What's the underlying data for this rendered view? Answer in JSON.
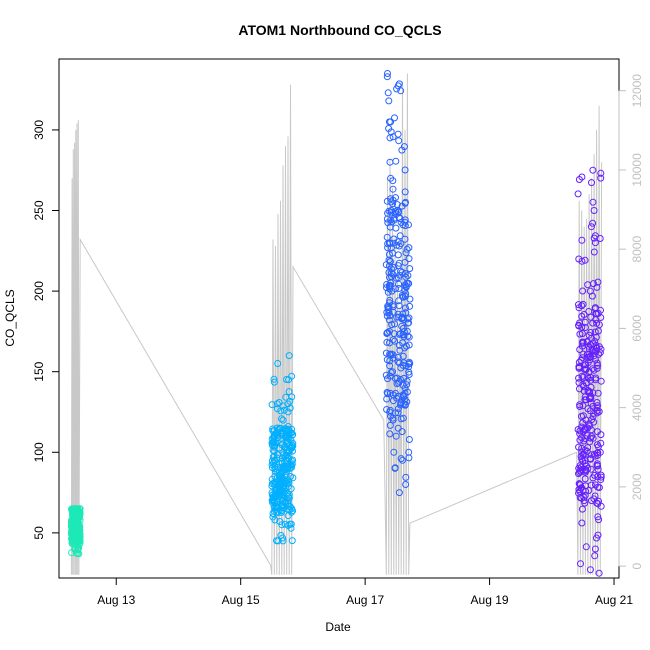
{
  "chart_data": {
    "type": "scatter",
    "title": "ATOM1 Northbound CO_QCLS",
    "xlabel": "Date",
    "ylabel": "CO_QCLS",
    "x_range_days": [
      12.08,
      21.08
    ],
    "ylim": [
      22,
      344
    ],
    "y2lim": [
      -300,
      12800
    ],
    "x_ticks": [
      {
        "day": 13,
        "label": "Aug 13"
      },
      {
        "day": 15,
        "label": "Aug 15"
      },
      {
        "day": 17,
        "label": "Aug 17"
      },
      {
        "day": 19,
        "label": "Aug 19"
      },
      {
        "day": 21,
        "label": "Aug 21"
      }
    ],
    "y_ticks": [
      50,
      100,
      150,
      200,
      250,
      300
    ],
    "y2_ticks": [
      0,
      2000,
      4000,
      6000,
      8000,
      10000,
      12000
    ],
    "grid": false,
    "series": [
      {
        "color": "#1de9b6",
        "day_range": [
          12.28,
          12.42
        ],
        "points": [
          [
            12.3,
            45
          ],
          [
            12.32,
            52
          ],
          [
            12.33,
            60
          ],
          [
            12.34,
            58
          ],
          [
            12.35,
            63
          ],
          [
            12.36,
            55
          ],
          [
            12.37,
            62
          ],
          [
            12.38,
            65
          ],
          [
            12.39,
            59
          ],
          [
            12.4,
            37
          ],
          [
            12.41,
            61
          ],
          [
            12.36,
            48
          ],
          [
            12.33,
            65
          ],
          [
            12.38,
            40
          ]
        ]
      },
      {
        "color": "#00b0ff",
        "day_range": [
          15.5,
          15.84
        ],
        "points": [
          [
            15.52,
            62
          ],
          [
            15.55,
            58
          ],
          [
            15.58,
            70
          ],
          [
            15.6,
            45
          ],
          [
            15.62,
            80
          ],
          [
            15.64,
            90
          ],
          [
            15.66,
            55
          ],
          [
            15.68,
            100
          ],
          [
            15.7,
            75
          ],
          [
            15.72,
            110
          ],
          [
            15.74,
            95
          ],
          [
            15.76,
            130
          ],
          [
            15.78,
            160
          ],
          [
            15.8,
            85
          ],
          [
            15.82,
            65
          ],
          [
            15.77,
            145
          ]
        ]
      },
      {
        "color": "#2962ff",
        "day_range": [
          17.34,
          17.72
        ],
        "points": [
          [
            17.36,
            335
          ],
          [
            17.37,
            323
          ],
          [
            17.38,
            318
          ],
          [
            17.39,
            305
          ],
          [
            17.4,
            280
          ],
          [
            17.41,
            270
          ],
          [
            17.42,
            250
          ],
          [
            17.43,
            200
          ],
          [
            17.44,
            150
          ],
          [
            17.45,
            120
          ],
          [
            17.46,
            100
          ],
          [
            17.48,
            90
          ],
          [
            17.5,
            110
          ],
          [
            17.55,
            75
          ],
          [
            17.6,
            95
          ],
          [
            17.65,
            80
          ],
          [
            17.7,
            100
          ],
          [
            17.38,
            190
          ]
        ]
      },
      {
        "color": "#651fff",
        "day_range": [
          20.42,
          20.8
        ],
        "points": [
          [
            20.45,
            80
          ],
          [
            20.48,
            100
          ],
          [
            20.52,
            70
          ],
          [
            20.55,
            120
          ],
          [
            20.58,
            90
          ],
          [
            20.6,
            150
          ],
          [
            20.62,
            200
          ],
          [
            20.64,
            110
          ],
          [
            20.66,
            275
          ],
          [
            20.68,
            250
          ],
          [
            20.7,
            230
          ],
          [
            20.72,
            180
          ],
          [
            20.74,
            60
          ],
          [
            20.76,
            25
          ],
          [
            20.78,
            100
          ],
          [
            20.7,
            40
          ]
        ]
      }
    ],
    "secondary_series": {
      "color": "#c8c8c8",
      "type": "line",
      "points": [
        [
          12.28,
          24
        ],
        [
          12.29,
          270
        ],
        [
          12.3,
          24
        ],
        [
          12.31,
          288
        ],
        [
          12.32,
          24
        ],
        [
          12.33,
          292
        ],
        [
          12.34,
          24
        ],
        [
          12.35,
          300
        ],
        [
          12.36,
          24
        ],
        [
          12.37,
          304
        ],
        [
          12.38,
          24
        ],
        [
          12.39,
          306
        ],
        [
          12.4,
          24
        ],
        [
          12.42,
          232
        ],
        [
          15.48,
          30
        ],
        [
          15.5,
          24
        ],
        [
          15.52,
          232
        ],
        [
          15.54,
          24
        ],
        [
          15.56,
          228
        ],
        [
          15.58,
          24
        ],
        [
          15.6,
          248
        ],
        [
          15.62,
          24
        ],
        [
          15.64,
          256
        ],
        [
          15.66,
          24
        ],
        [
          15.68,
          278
        ],
        [
          15.7,
          24
        ],
        [
          15.72,
          290
        ],
        [
          15.74,
          24
        ],
        [
          15.76,
          296
        ],
        [
          15.78,
          24
        ],
        [
          15.8,
          328
        ],
        [
          15.82,
          24
        ],
        [
          15.84,
          215
        ],
        [
          17.3,
          120
        ],
        [
          17.34,
          24
        ],
        [
          17.36,
          270
        ],
        [
          17.38,
          24
        ],
        [
          17.4,
          282
        ],
        [
          17.42,
          24
        ],
        [
          17.44,
          264
        ],
        [
          17.46,
          24
        ],
        [
          17.48,
          234
        ],
        [
          17.5,
          24
        ],
        [
          17.52,
          216
        ],
        [
          17.54,
          24
        ],
        [
          17.56,
          190
        ],
        [
          17.58,
          24
        ],
        [
          17.6,
          330
        ],
        [
          17.62,
          24
        ],
        [
          17.64,
          300
        ],
        [
          17.66,
          24
        ],
        [
          17.68,
          335
        ],
        [
          17.7,
          24
        ],
        [
          17.72,
          56
        ],
        [
          20.4,
          100
        ],
        [
          20.42,
          24
        ],
        [
          20.44,
          256
        ],
        [
          20.46,
          24
        ],
        [
          20.48,
          250
        ],
        [
          20.5,
          24
        ],
        [
          20.52,
          240
        ],
        [
          20.54,
          24
        ],
        [
          20.56,
          245
        ],
        [
          20.58,
          24
        ],
        [
          20.6,
          260
        ],
        [
          20.62,
          24
        ],
        [
          20.64,
          270
        ],
        [
          20.66,
          24
        ],
        [
          20.68,
          285
        ],
        [
          20.7,
          24
        ],
        [
          20.72,
          300
        ],
        [
          20.74,
          24
        ],
        [
          20.76,
          315
        ],
        [
          20.78,
          24
        ],
        [
          20.8,
          280
        ]
      ]
    }
  }
}
